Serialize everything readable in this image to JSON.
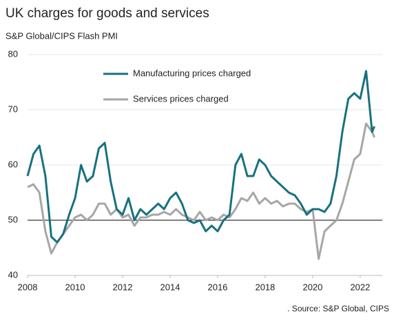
{
  "chart_data": {
    "type": "line",
    "title": "UK charges for goods and services",
    "subtitle": "S&P Global/CIPS Flash PMI",
    "source": ". Source: S&P Global, CIPS",
    "x": [
      2008.0,
      2008.25,
      2008.5,
      2008.75,
      2009.0,
      2009.25,
      2009.5,
      2009.75,
      2010.0,
      2010.25,
      2010.5,
      2010.75,
      2011.0,
      2011.25,
      2011.5,
      2011.75,
      2012.0,
      2012.25,
      2012.5,
      2012.75,
      2013.0,
      2013.25,
      2013.5,
      2013.75,
      2014.0,
      2014.25,
      2014.5,
      2014.75,
      2015.0,
      2015.25,
      2015.5,
      2015.75,
      2016.0,
      2016.25,
      2016.5,
      2016.75,
      2017.0,
      2017.25,
      2017.5,
      2017.75,
      2018.0,
      2018.25,
      2018.5,
      2018.75,
      2019.0,
      2019.25,
      2019.5,
      2019.75,
      2020.0,
      2020.25,
      2020.5,
      2020.75,
      2021.0,
      2021.25,
      2021.5,
      2021.75,
      2022.0,
      2022.25,
      2022.5,
      2022.6
    ],
    "series": [
      {
        "name": "Manufacturing prices charged",
        "color": "#17717f",
        "values": [
          58,
          62,
          63.5,
          58,
          47,
          46,
          47.5,
          51,
          54,
          60,
          57,
          58,
          63,
          64,
          57,
          52,
          51,
          54,
          50,
          52,
          51,
          52,
          53,
          52,
          54,
          55,
          53,
          50,
          49.5,
          50,
          48,
          49,
          48,
          50,
          51,
          60,
          62,
          58,
          58,
          61,
          60,
          58,
          57,
          56,
          55,
          54.5,
          53,
          51,
          52,
          52,
          51.5,
          53,
          58,
          66,
          72,
          73,
          72,
          77,
          66,
          67
        ]
      },
      {
        "name": "Services prices charged",
        "color": "#a6a6a6",
        "values": [
          56,
          56.5,
          55,
          48,
          44,
          46,
          47.5,
          49,
          50.5,
          51,
          50,
          51,
          53,
          53,
          51,
          52,
          50.5,
          51,
          49,
          50.5,
          50.5,
          51,
          51,
          51.5,
          51,
          52,
          51,
          50.5,
          50,
          51.5,
          50,
          50.5,
          50,
          51,
          50.5,
          52,
          54,
          53.5,
          55,
          53,
          54,
          53,
          53.5,
          52.5,
          53,
          53,
          52,
          51.5,
          52,
          43,
          48,
          49,
          50,
          53,
          57,
          61,
          62,
          67.5,
          66,
          65
        ]
      }
    ],
    "xlim": [
      2008,
      2022.93
    ],
    "xticks": [
      2008,
      2010,
      2012,
      2014,
      2016,
      2018,
      2020,
      2022
    ],
    "ylim": [
      40,
      80
    ],
    "yticks": [
      40,
      50,
      60,
      70,
      80
    ],
    "grid": true,
    "reference_line": 50
  }
}
